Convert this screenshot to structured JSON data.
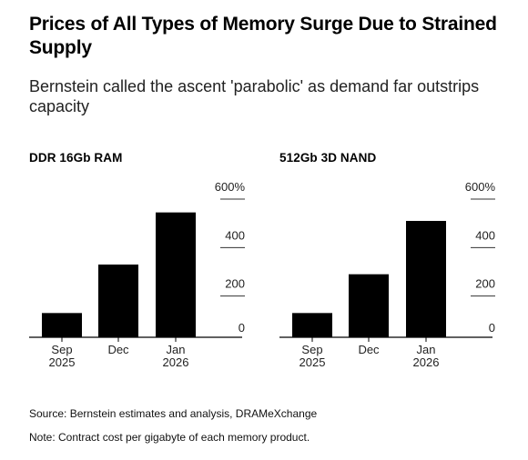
{
  "title": "Prices of All Types of Memory Surge Due to Strained Supply",
  "subtitle": "Bernstein called the ascent 'parabolic' as demand far outstrips capacity",
  "source": "Source: Bernstein estimates and analysis, DRAMeXchange",
  "note": "Note: Contract cost per gigabyte of each memory product.",
  "chart_data": [
    {
      "type": "bar",
      "title": "DDR 16Gb RAM",
      "categories": [
        [
          "Sep",
          "2025"
        ],
        [
          "Dec"
        ],
        [
          "Jan",
          "2026"
        ]
      ],
      "values": [
        100,
        300,
        515
      ],
      "ylim": [
        0,
        600
      ],
      "yticks": [
        0,
        200,
        400,
        600
      ],
      "ytick_labels": [
        "0",
        "200",
        "400",
        "600%"
      ],
      "grid": true,
      "bar_color": "#000000"
    },
    {
      "type": "bar",
      "title": "512Gb 3D NAND",
      "categories": [
        [
          "Sep",
          "2025"
        ],
        [
          "Dec"
        ],
        [
          "Jan",
          "2026"
        ]
      ],
      "values": [
        100,
        260,
        480
      ],
      "ylim": [
        0,
        600
      ],
      "yticks": [
        0,
        200,
        400,
        600
      ],
      "ytick_labels": [
        "0",
        "200",
        "400",
        "600%"
      ],
      "grid": true,
      "bar_color": "#000000"
    }
  ]
}
